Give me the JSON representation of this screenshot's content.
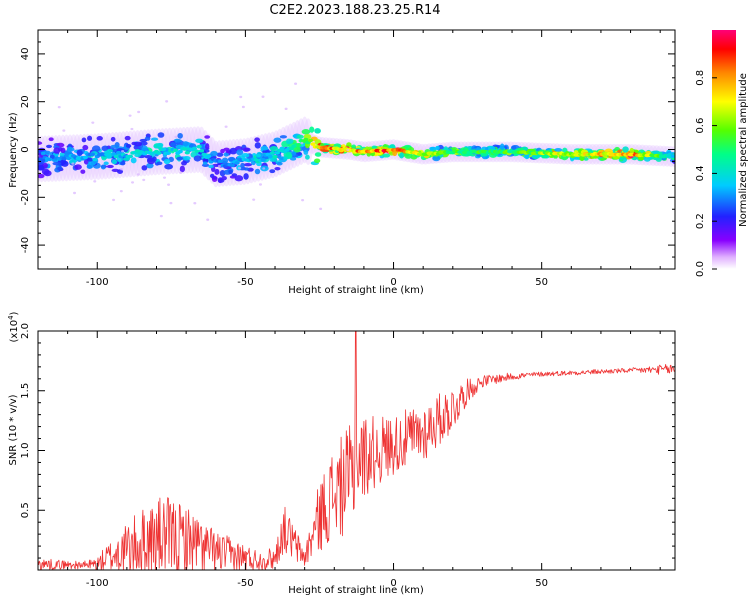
{
  "title": "C2E2.2023.188.23.25.R14",
  "chart_data": [
    {
      "type": "heatmap",
      "xlabel": "Height of straight line (km)",
      "ylabel": "Frequency (Hz)",
      "xlim": [
        -120,
        95
      ],
      "ylim": [
        -50,
        50
      ],
      "xticks": [
        -100,
        -50,
        0,
        50
      ],
      "yticks": [
        -40,
        -20,
        0,
        20,
        40
      ],
      "colorbar": {
        "label": "Normalized spectral amplitude",
        "range": [
          0,
          1
        ],
        "ticks": [
          "0.0",
          "0.2",
          "0.4",
          "0.6",
          "0.8"
        ],
        "tick_values": [
          0.0,
          0.2,
          0.4,
          0.6,
          0.8
        ]
      },
      "ridge": {
        "x": [
          -120,
          -100,
          -80,
          -65,
          -60,
          -50,
          -40,
          -30,
          -25,
          -15,
          -10,
          0,
          10,
          20,
          40,
          60,
          80,
          95
        ],
        "frequency": [
          -4,
          -3,
          -1,
          0,
          -6,
          -5,
          -2,
          4,
          1,
          0,
          -1,
          0,
          -2,
          -1,
          -1,
          -2,
          -2,
          -3
        ],
        "amplitude": [
          0.3,
          0.35,
          0.4,
          0.4,
          0.3,
          0.35,
          0.4,
          0.5,
          0.85,
          0.8,
          0.85,
          0.9,
          0.7,
          0.55,
          0.55,
          0.7,
          0.85,
          0.4
        ]
      }
    },
    {
      "type": "line",
      "xlabel": "Height of straight line (km)",
      "ylabel": "SNR (10 * v/v)",
      "y_multiplier": "(x10",
      "y_multiplier_exp": "4",
      "y_multiplier_close": ")",
      "xlim": [
        -120,
        95
      ],
      "ylim": [
        0,
        2.0
      ],
      "xticks": [
        -100,
        -50,
        0,
        50
      ],
      "yticks": [
        0.5,
        1.0,
        1.5,
        2.0
      ],
      "ytick_labels": [
        "0.5",
        "1.0",
        "1.5",
        "2.0"
      ],
      "color": "#ee3333",
      "envelope": {
        "x": [
          -120,
          -105,
          -100,
          -95,
          -85,
          -78,
          -70,
          -60,
          -50,
          -45,
          -40,
          -37,
          -33,
          -30,
          -25,
          -20,
          -15,
          -12,
          -10,
          -5,
          0,
          10,
          20,
          25,
          30,
          40,
          50,
          60,
          80,
          95
        ],
        "base": [
          0.05,
          0.04,
          0.05,
          0.12,
          0.22,
          0.28,
          0.25,
          0.15,
          0.1,
          0.08,
          0.1,
          0.35,
          0.2,
          0.1,
          0.45,
          0.65,
          0.75,
          0.9,
          0.95,
          1.0,
          1.05,
          1.15,
          1.35,
          1.5,
          1.58,
          1.62,
          1.64,
          1.65,
          1.67,
          1.68
        ],
        "noise": [
          0.05,
          0.03,
          0.06,
          0.15,
          0.3,
          0.35,
          0.3,
          0.18,
          0.12,
          0.08,
          0.1,
          0.2,
          0.15,
          0.08,
          0.3,
          0.4,
          0.45,
          0.5,
          0.35,
          0.3,
          0.25,
          0.25,
          0.2,
          0.1,
          0.05,
          0.03,
          0.02,
          0.02,
          0.02,
          0.05
        ]
      },
      "spikes": [
        {
          "x": -12.8,
          "y": 2.0
        }
      ]
    }
  ]
}
